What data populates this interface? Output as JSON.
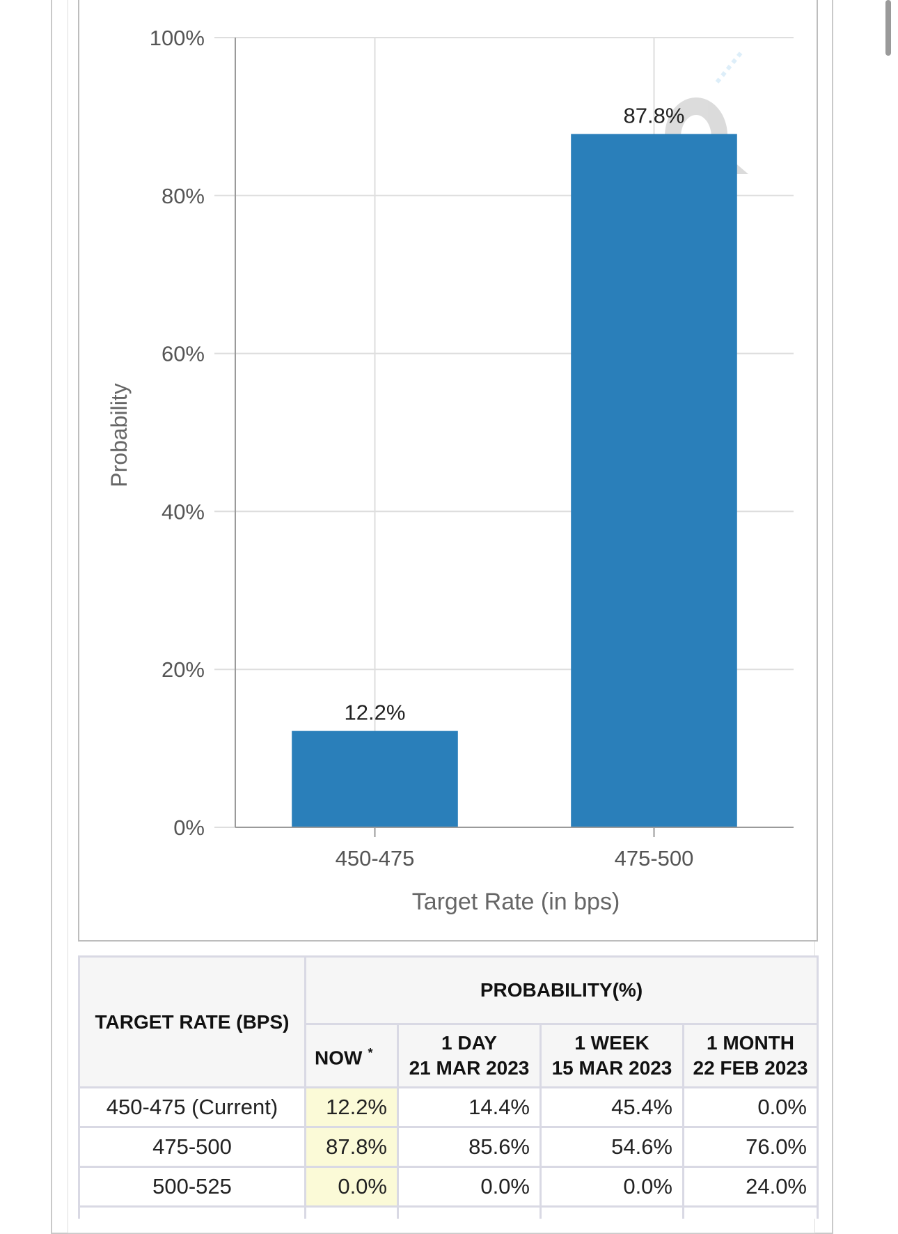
{
  "chart_data": {
    "type": "bar",
    "categories": [
      "450-475",
      "475-500"
    ],
    "values": [
      12.2,
      87.8
    ],
    "value_labels": [
      "12.2%",
      "87.8%"
    ],
    "xlabel": "Target Rate (in bps)",
    "ylabel": "Probability",
    "ylim": [
      0,
      100
    ],
    "yticks": [
      0,
      20,
      40,
      60,
      80,
      100
    ],
    "ytick_labels": [
      "0%",
      "20%",
      "40%",
      "60%",
      "80%",
      "100%"
    ],
    "grid": true,
    "bar_color": "#2a7fba"
  },
  "table": {
    "rate_header": "TARGET RATE (BPS)",
    "prob_header": "PROBABILITY(%)",
    "columns": [
      {
        "line1": "NOW",
        "mark": "*",
        "line2": ""
      },
      {
        "line1": "1 DAY",
        "line2": "21 MAR 2023"
      },
      {
        "line1": "1 WEEK",
        "line2": "15 MAR 2023"
      },
      {
        "line1": "1 MONTH",
        "line2": "22 FEB 2023"
      }
    ],
    "rows": [
      {
        "rate": "450-475 (Current)",
        "values": [
          "12.2%",
          "14.4%",
          "45.4%",
          "0.0%"
        ]
      },
      {
        "rate": "475-500",
        "values": [
          "87.8%",
          "85.6%",
          "54.6%",
          "76.0%"
        ]
      },
      {
        "rate": "500-525",
        "values": [
          "0.0%",
          "0.0%",
          "0.0%",
          "24.0%"
        ]
      }
    ],
    "highlight_color": "#fbfad7"
  }
}
